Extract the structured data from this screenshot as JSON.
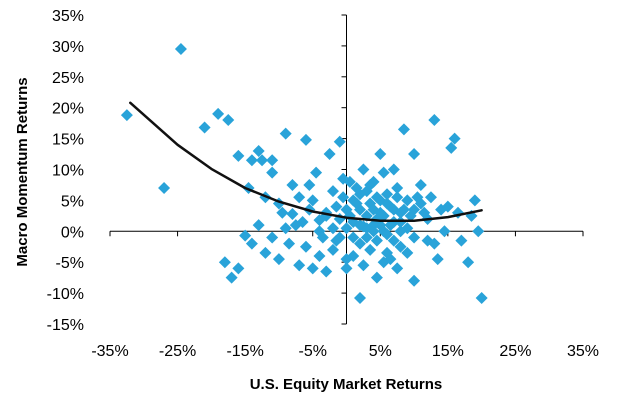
{
  "chart_data": {
    "type": "scatter",
    "xlabel": "U.S. Equity Market Returns",
    "ylabel": "Macro Momentum Returns",
    "xlim": [
      -35,
      35
    ],
    "ylim": [
      -15,
      35
    ],
    "x_ticks": [
      "-35%",
      "-25%",
      "-15%",
      "-5%",
      "5%",
      "15%",
      "25%",
      "35%"
    ],
    "y_ticks": [
      "35%",
      "30%",
      "25%",
      "20%",
      "15%",
      "10%",
      "5%",
      "0%",
      "-5%",
      "-10%",
      "-15%"
    ],
    "grid": false,
    "marker": "diamond",
    "marker_color": "#29a3d9",
    "trend_color": "#111111",
    "trend": {
      "type": "quadratic",
      "x_range": [
        -32,
        20
      ],
      "points": [
        [
          -32,
          20.8
        ],
        [
          -25,
          14.0
        ],
        [
          -20,
          10.1
        ],
        [
          -15,
          7.0
        ],
        [
          -10,
          4.8
        ],
        [
          -5,
          3.2
        ],
        [
          0,
          2.2
        ],
        [
          5,
          1.7
        ],
        [
          10,
          1.7
        ],
        [
          15,
          2.3
        ],
        [
          20,
          3.4
        ]
      ]
    },
    "points": [
      [
        -32.5,
        18.8
      ],
      [
        -24.5,
        29.5
      ],
      [
        -27,
        7.0
      ],
      [
        -21,
        16.8
      ],
      [
        -19,
        19.0
      ],
      [
        -17.5,
        18.0
      ],
      [
        -16,
        12.2
      ],
      [
        -14.5,
        7.0
      ],
      [
        -14,
        11.5
      ],
      [
        -13,
        13.0
      ],
      [
        -12.5,
        11.5
      ],
      [
        -15,
        -0.7
      ],
      [
        -12,
        5.5
      ],
      [
        -11,
        9.5
      ],
      [
        -11,
        11.5
      ],
      [
        -10,
        4.5
      ],
      [
        -9,
        15.8
      ],
      [
        -8,
        7.5
      ],
      [
        -8,
        2.8
      ],
      [
        -7,
        5.5
      ],
      [
        -6.5,
        1.5
      ],
      [
        -6,
        14.8
      ],
      [
        -5.5,
        7.5
      ],
      [
        -5,
        5.0
      ],
      [
        -4.5,
        9.5
      ],
      [
        -4,
        1.8
      ],
      [
        -3.5,
        -1.0
      ],
      [
        -3,
        3.0
      ],
      [
        -2.5,
        12.5
      ],
      [
        -2,
        6.5
      ],
      [
        -1.5,
        4.0
      ],
      [
        -1,
        14.5
      ],
      [
        -1,
        2.0
      ],
      [
        -0.5,
        8.5
      ],
      [
        0,
        3.5
      ],
      [
        0,
        -4.5
      ],
      [
        0.5,
        8.0
      ],
      [
        1,
        5.0
      ],
      [
        1,
        1.5
      ],
      [
        1.5,
        7.0
      ],
      [
        2,
        3.5
      ],
      [
        2,
        -2.0
      ],
      [
        2.5,
        10.0
      ],
      [
        2.5,
        0.8
      ],
      [
        3,
        6.5
      ],
      [
        3,
        2.5
      ],
      [
        3.5,
        4.5
      ],
      [
        4,
        8.0
      ],
      [
        4,
        1.0
      ],
      [
        4.5,
        5.5
      ],
      [
        4.5,
        -1.5
      ],
      [
        5,
        12.5
      ],
      [
        5,
        3.0
      ],
      [
        5.5,
        9.5
      ],
      [
        5.5,
        0.0
      ],
      [
        6,
        6.0
      ],
      [
        6,
        -3.5
      ],
      [
        6.5,
        4.0
      ],
      [
        7,
        10.0
      ],
      [
        7,
        1.5
      ],
      [
        7.5,
        7.0
      ],
      [
        8,
        3.0
      ],
      [
        8,
        -2.5
      ],
      [
        8.5,
        16.5
      ],
      [
        9,
        5.0
      ],
      [
        9,
        0.5
      ],
      [
        10,
        12.5
      ],
      [
        10,
        3.5
      ],
      [
        10,
        -1.0
      ],
      [
        11,
        7.5
      ],
      [
        11,
        4.5
      ],
      [
        12,
        2.0
      ],
      [
        12.5,
        5.5
      ],
      [
        13,
        -2.0
      ],
      [
        13,
        18.0
      ],
      [
        14,
        3.5
      ],
      [
        14.5,
        0.0
      ],
      [
        15,
        4.0
      ],
      [
        15.5,
        13.5
      ],
      [
        16,
        15.0
      ],
      [
        16.5,
        3.0
      ],
      [
        17,
        -1.5
      ],
      [
        18,
        -5.0
      ],
      [
        18.5,
        2.5
      ],
      [
        19,
        5.0
      ],
      [
        19.5,
        0.0
      ],
      [
        20,
        -10.8
      ],
      [
        2,
        -10.8
      ],
      [
        -18,
        -5.0
      ],
      [
        -17,
        -7.5
      ],
      [
        -16,
        -6.0
      ],
      [
        -14,
        -2.0
      ],
      [
        -13,
        1.0
      ],
      [
        -12,
        -3.5
      ],
      [
        -11,
        -1.0
      ],
      [
        -10,
        -4.5
      ],
      [
        -9,
        0.5
      ],
      [
        -8.5,
        -2.0
      ],
      [
        -7,
        -5.5
      ],
      [
        -6,
        -2.5
      ],
      [
        -5,
        -6.0
      ],
      [
        -4,
        -4.0
      ],
      [
        -3,
        -6.5
      ],
      [
        -2,
        -3.0
      ],
      [
        -1,
        -1.0
      ],
      [
        0,
        -6.0
      ],
      [
        1,
        -4.0
      ],
      [
        2.5,
        -5.5
      ],
      [
        3.5,
        -3.0
      ],
      [
        4.5,
        -7.5
      ],
      [
        5.5,
        -5.0
      ],
      [
        6.5,
        -4.5
      ],
      [
        7.5,
        -6.0
      ],
      [
        9,
        -3.5
      ],
      [
        10,
        -8.0
      ],
      [
        12,
        -1.5
      ],
      [
        13.5,
        -4.5
      ],
      [
        -0.5,
        5.5
      ],
      [
        0.5,
        2.5
      ],
      [
        1.5,
        4.5
      ],
      [
        2,
        6.0
      ],
      [
        3,
        0.5
      ],
      [
        3.5,
        7.5
      ],
      [
        4,
        3.5
      ],
      [
        4.5,
        2.0
      ],
      [
        5,
        5.0
      ],
      [
        5.5,
        2.5
      ],
      [
        6,
        4.5
      ],
      [
        6.5,
        1.0
      ],
      [
        7,
        3.5
      ],
      [
        7.5,
        5.5
      ],
      [
        8,
        1.5
      ],
      [
        8.5,
        3.5
      ],
      [
        9.5,
        2.5
      ],
      [
        10.5,
        5.5
      ],
      [
        11.5,
        3.0
      ],
      [
        -2,
        0.5
      ],
      [
        -3,
        2.5
      ],
      [
        -4,
        0.0
      ],
      [
        -1.5,
        -1.5
      ],
      [
        0,
        0.5
      ],
      [
        1,
        -1.0
      ],
      [
        2,
        1.0
      ],
      [
        3,
        -1.0
      ],
      [
        4,
        0.0
      ],
      [
        5,
        1.0
      ],
      [
        6,
        -0.5
      ],
      [
        7,
        -1.5
      ],
      [
        8,
        0.0
      ],
      [
        -7.5,
        1.0
      ],
      [
        -9.5,
        3.0
      ],
      [
        -5.5,
        3.5
      ]
    ]
  }
}
